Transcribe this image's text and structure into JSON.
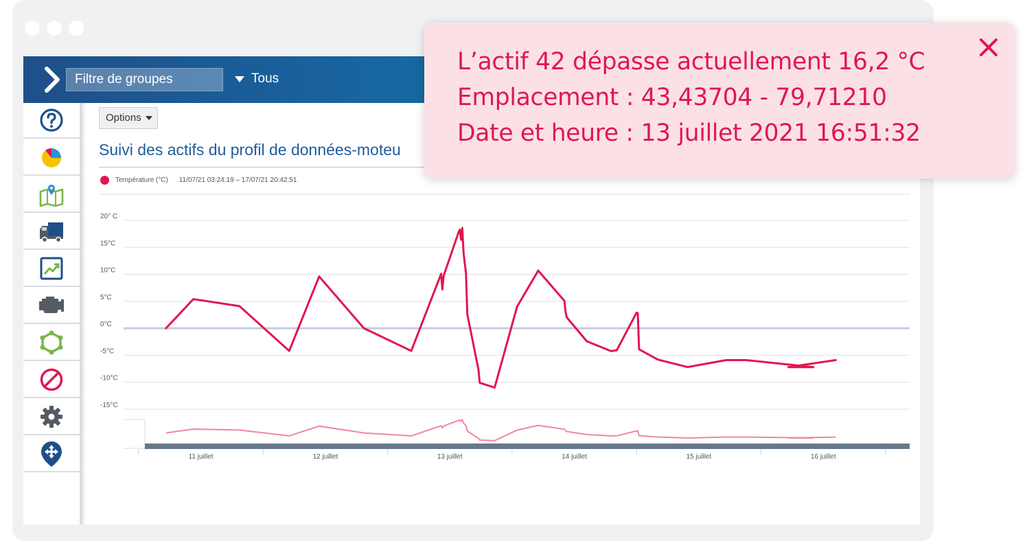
{
  "header": {
    "group_filter_value": "Filtre de groupes",
    "dropdown_label": "Tous"
  },
  "sidebar": {
    "items": [
      {
        "icon": "help-icon"
      },
      {
        "icon": "pie-chart-icon"
      },
      {
        "icon": "map-icon"
      },
      {
        "icon": "truck-icon"
      },
      {
        "icon": "trend-chart-icon"
      },
      {
        "icon": "engine-icon"
      },
      {
        "icon": "zone-network-icon"
      },
      {
        "icon": "no-entry-icon"
      },
      {
        "icon": "gear-icon"
      },
      {
        "icon": "location-pin-icon"
      }
    ]
  },
  "toolbar": {
    "options_label": "Options"
  },
  "page": {
    "title": "Suivi des actifs du profil de données-moteu"
  },
  "legend": {
    "series_label": "Température (°C)",
    "date_range": "11/07/21 03:24:19 – 17/07/21 20:42:51"
  },
  "alert": {
    "line1": "L’actif 42 dépasse actuellement 16,2 °C",
    "line2": "Emplacement : 43,43704 - 79,71210",
    "line3": "Date et heure : 13 juillet 2021 16:51:32"
  },
  "colors": {
    "accent": "#e0174f",
    "header_blue": "#1769a3",
    "title_blue": "#1f5d9b",
    "navigator_line": "#f086a6"
  },
  "chart_data": {
    "type": "line",
    "y_tick_labels": [
      "20° C",
      "15°C",
      "10°C",
      "5°C",
      "0°C",
      "-5°C",
      "-10°C",
      "-15°C"
    ],
    "y_ticks": [
      20,
      15,
      10,
      5,
      0,
      -5,
      -10,
      -15
    ],
    "ylim": [
      -15,
      20
    ],
    "x_tick_labels": [
      "11 juillet",
      "12 juillet",
      "13 juillet",
      "14 juillet",
      "15 juillet",
      "16 juillet"
    ],
    "xlim": [
      10.55,
      16.55
    ],
    "series": [
      {
        "name": "Température (°C)",
        "color": "#e0174f",
        "x": [
          10.72,
          10.94,
          11.31,
          11.71,
          11.95,
          12.31,
          12.69,
          12.93,
          12.94,
          12.95,
          13.07,
          13.08,
          13.09,
          13.1,
          13.11,
          13.13,
          13.14,
          13.23,
          13.24,
          13.36,
          13.54,
          13.71,
          13.92,
          13.93,
          13.94,
          14.1,
          14.29,
          14.31,
          14.33,
          14.34,
          14.5,
          14.51,
          14.52,
          14.67,
          14.91,
          15.22,
          15.38,
          15.92,
          15.72,
          16.1
        ],
        "y": [
          0,
          5.4,
          4.1,
          -4.2,
          9.6,
          0,
          -4.2,
          10.1,
          7.2,
          9.7,
          17.8,
          18.3,
          16.4,
          18.6,
          14,
          10.2,
          2.6,
          -7.7,
          -10.1,
          -11.0,
          4.0,
          10.7,
          5.1,
          3.0,
          2.0,
          -2.4,
          -4.2,
          -4.2,
          -4.1,
          -4.1,
          2.9,
          2.8,
          -3.9,
          -5.8,
          -7.2,
          -5.9,
          -5.9,
          -7.2,
          -7.2,
          -5.9
        ]
      }
    ]
  }
}
